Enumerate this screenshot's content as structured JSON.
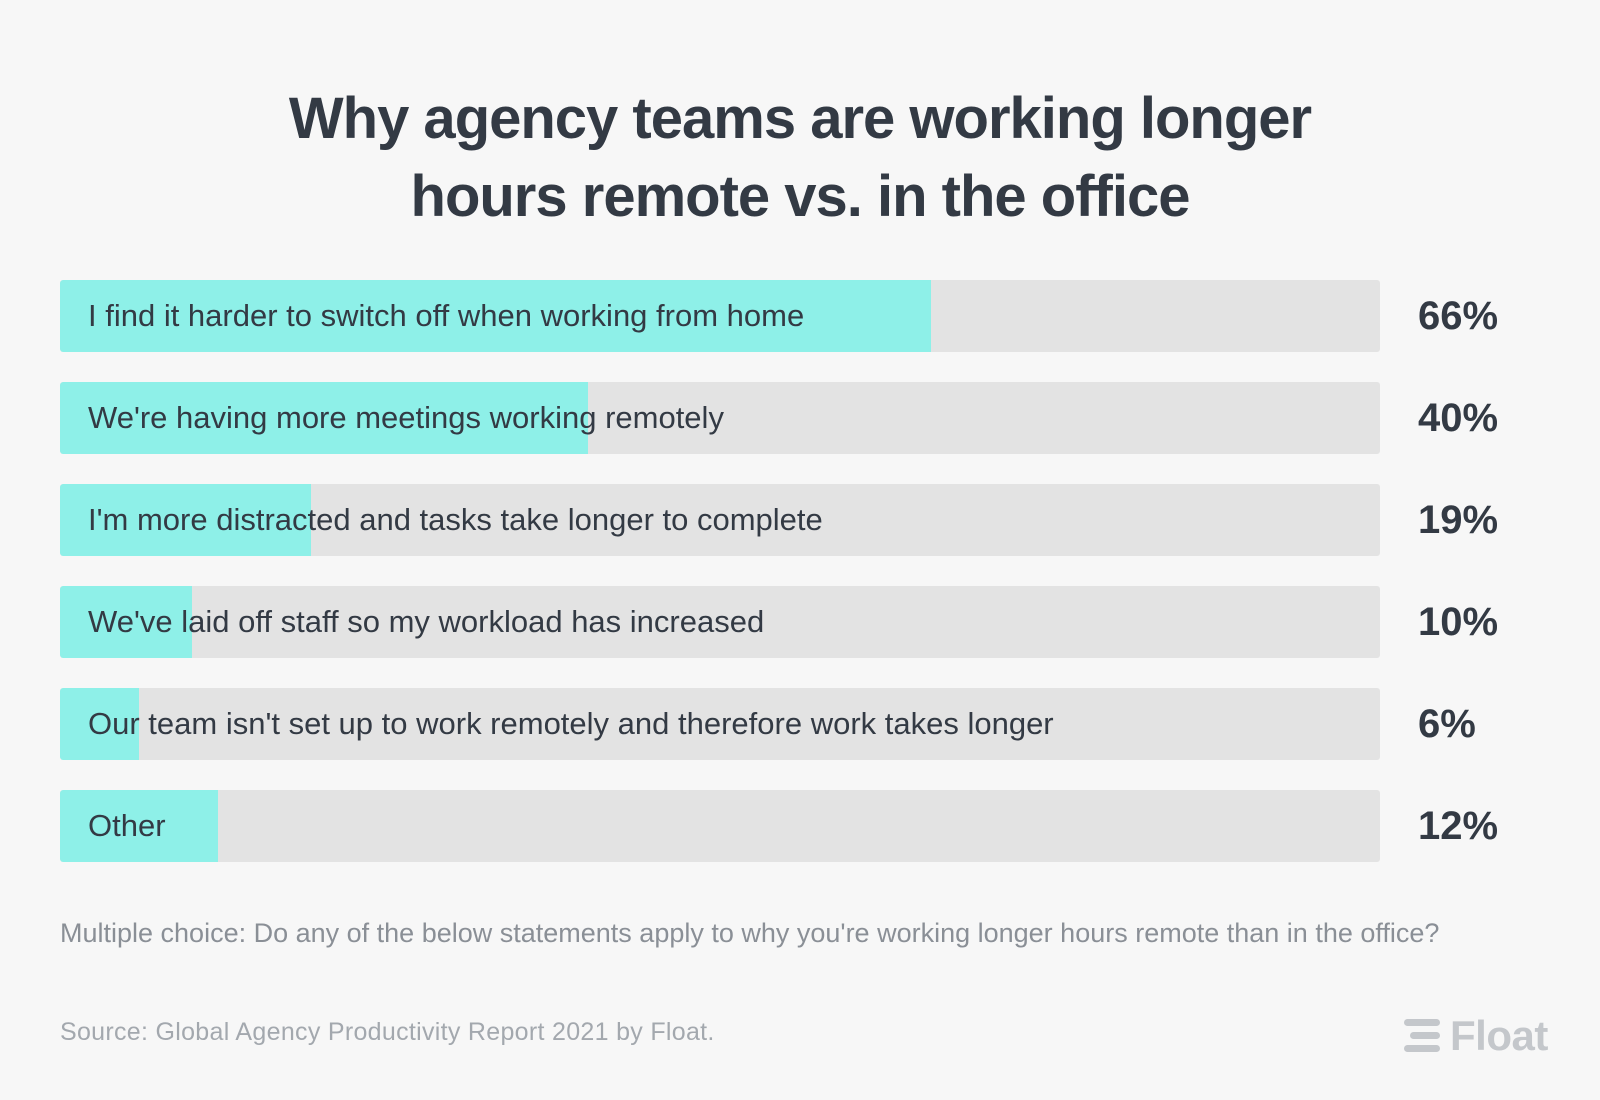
{
  "title": {
    "line1": "Why agency teams are working longer",
    "line2": "hours remote vs. in the office"
  },
  "colors": {
    "fill": "#8ef0e8",
    "track": "#e3e3e3",
    "text": "#333a44",
    "background": "#f7f7f7"
  },
  "chart_data": {
    "type": "bar",
    "orientation": "horizontal",
    "categories": [
      "I find it harder to switch off when working from home",
      "We're having more meetings working remotely",
      "I'm more distracted and tasks take longer to complete",
      "We've laid off staff so my workload has increased",
      "Our team isn't set up to work remotely and therefore work takes longer",
      "Other"
    ],
    "values": [
      66,
      40,
      19,
      10,
      6,
      12
    ],
    "value_labels": [
      "66%",
      "40%",
      "19%",
      "10%",
      "6%",
      "12%"
    ],
    "unit": "%",
    "xlim": [
      0,
      100
    ]
  },
  "question": "Multiple choice: Do any of the below statements apply to why you're working longer hours remote than in the office?",
  "source": "Source: Global Agency Productivity Report 2021 by Float.",
  "logo": {
    "text": "Float",
    "icon": "float-logo-icon"
  }
}
